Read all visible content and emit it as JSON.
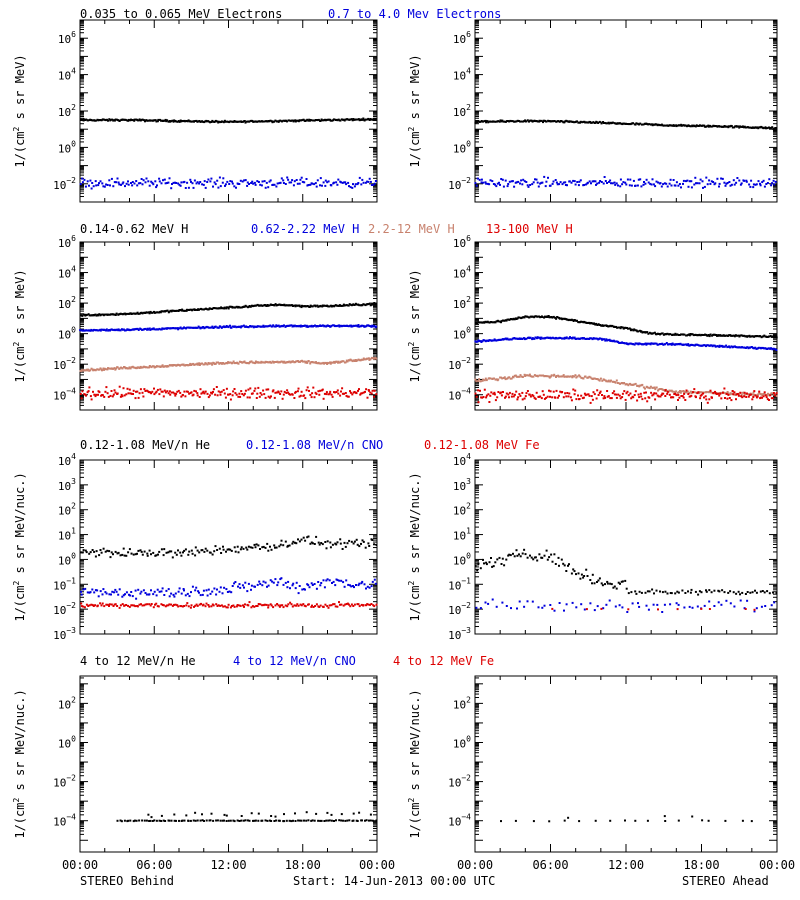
{
  "colors": {
    "black": "#000000",
    "blue": "#0000dd",
    "tan": "#c8826e",
    "red": "#dd0000"
  },
  "footer": {
    "left": "STEREO Behind",
    "center": "Start: 14-Jun-2013 00:00 UTC",
    "right": "STEREO Ahead"
  },
  "time_ticks": [
    "00:00",
    "06:00",
    "12:00",
    "18:00",
    "00:00"
  ],
  "chart_data": [
    {
      "type": "scatter",
      "row": 1,
      "ylabel": "1/(cm2 s sr MeV)",
      "ylim_exp": [
        -3,
        7
      ],
      "ytick_exps": [
        -2,
        0,
        2,
        4,
        6
      ],
      "legend": [
        {
          "name": "0.035 to 0.065 MeV Electrons",
          "color": "black"
        },
        {
          "name": "0.7 to 4.0 Mev Electrons",
          "color": "blue"
        }
      ],
      "panels": [
        {
          "side": "STEREO Behind",
          "series": [
            {
              "color": "black",
              "x": [
                0,
                4,
                8,
                12,
                16,
                20,
                24
              ],
              "y_exp": [
                1.5,
                1.5,
                1.45,
                1.4,
                1.45,
                1.5,
                1.55
              ],
              "noise": 0.04,
              "count": 300
            },
            {
              "color": "blue",
              "x": [
                0,
                24
              ],
              "y_exp": [
                -1.95,
                -1.95
              ],
              "noise": 0.22,
              "count": 220
            }
          ]
        },
        {
          "side": "STEREO Ahead",
          "series": [
            {
              "color": "black",
              "x": [
                0,
                4,
                8,
                12,
                16,
                20,
                24
              ],
              "y_exp": [
                1.4,
                1.45,
                1.4,
                1.3,
                1.2,
                1.15,
                1.05
              ],
              "noise": 0.04,
              "count": 300
            },
            {
              "color": "blue",
              "x": [
                0,
                24
              ],
              "y_exp": [
                -1.95,
                -1.95
              ],
              "noise": 0.22,
              "count": 220
            }
          ]
        }
      ]
    },
    {
      "type": "scatter",
      "row": 2,
      "ylabel": "1/(cm2 s sr MeV)",
      "ylim_exp": [
        -5,
        6
      ],
      "ytick_exps": [
        -4,
        -2,
        0,
        2,
        4,
        6
      ],
      "legend": [
        {
          "name": "0.14-0.62 MeV H",
          "color": "black"
        },
        {
          "name": "0.62-2.22 MeV H",
          "color": "blue"
        },
        {
          "name": "2.2-12 MeV H",
          "color": "tan"
        },
        {
          "name": "13-100 MeV H",
          "color": "red"
        }
      ],
      "panels": [
        {
          "side": "STEREO Behind",
          "series": [
            {
              "color": "black",
              "x": [
                0,
                4,
                8,
                12,
                16,
                18,
                20,
                24
              ],
              "y_exp": [
                1.2,
                1.3,
                1.5,
                1.7,
                1.9,
                1.8,
                1.8,
                1.95
              ],
              "noise": 0.05,
              "count": 300
            },
            {
              "color": "blue",
              "x": [
                0,
                6,
                12,
                18,
                24
              ],
              "y_exp": [
                0.2,
                0.3,
                0.45,
                0.5,
                0.5
              ],
              "noise": 0.05,
              "count": 300
            },
            {
              "color": "tan",
              "x": [
                0,
                6,
                12,
                18,
                20,
                24
              ],
              "y_exp": [
                -2.4,
                -2.15,
                -1.9,
                -1.85,
                -1.95,
                -1.6
              ],
              "noise": 0.06,
              "count": 300
            },
            {
              "color": "red",
              "x": [
                0,
                24
              ],
              "y_exp": [
                -3.9,
                -3.9
              ],
              "noise": 0.3,
              "count": 260
            }
          ]
        },
        {
          "side": "STEREO Ahead",
          "series": [
            {
              "color": "black",
              "x": [
                0,
                2,
                4,
                6,
                8,
                10,
                12,
                14,
                18,
                24
              ],
              "y_exp": [
                0.7,
                0.8,
                1.1,
                1.1,
                0.85,
                0.55,
                0.35,
                0.0,
                -0.1,
                -0.2
              ],
              "noise": 0.05,
              "count": 300
            },
            {
              "color": "blue",
              "x": [
                0,
                4,
                8,
                10,
                12,
                16,
                20,
                24
              ],
              "y_exp": [
                -0.5,
                -0.3,
                -0.3,
                -0.35,
                -0.65,
                -0.7,
                -0.85,
                -1.0
              ],
              "noise": 0.05,
              "count": 300
            },
            {
              "color": "tan",
              "x": [
                0,
                4,
                8,
                10,
                12,
                14,
                16,
                24
              ],
              "y_exp": [
                -3.1,
                -2.75,
                -2.8,
                -3.0,
                -3.3,
                -3.55,
                -3.8,
                -4.0
              ],
              "noise": 0.08,
              "count": 260
            },
            {
              "color": "red",
              "x": [
                0,
                24
              ],
              "y_exp": [
                -4.05,
                -4.05
              ],
              "noise": 0.3,
              "count": 260
            }
          ]
        }
      ]
    },
    {
      "type": "scatter",
      "row": 3,
      "ylabel": "1/(cm2 s sr MeV/nuc.)",
      "ylim_exp": [
        -3,
        4
      ],
      "ytick_exps": [
        -3,
        -2,
        -1,
        0,
        1,
        2,
        3,
        4
      ],
      "legend": [
        {
          "name": "0.12-1.08 MeV/n He",
          "color": "black"
        },
        {
          "name": "0.12-1.08 MeV/n CNO",
          "color": "blue"
        },
        {
          "name": "0.12-1.08 MeV Fe",
          "color": "red"
        }
      ],
      "panels": [
        {
          "side": "STEREO Behind",
          "series": [
            {
              "color": "black",
              "x": [
                0,
                4,
                8,
                12,
                16,
                18,
                20,
                24
              ],
              "y_exp": [
                0.3,
                0.25,
                0.25,
                0.4,
                0.55,
                0.8,
                0.6,
                0.6
              ],
              "noise": 0.15,
              "count": 180
            },
            {
              "color": "blue",
              "x": [
                0,
                6,
                12,
                16,
                18,
                20,
                24
              ],
              "y_exp": [
                -1.3,
                -1.35,
                -1.2,
                -0.9,
                -1.1,
                -0.9,
                -1.0
              ],
              "noise": 0.2,
              "count": 180
            },
            {
              "color": "red",
              "x": [
                0,
                24
              ],
              "y_exp": [
                -1.85,
                -1.85
              ],
              "noise": 0.08,
              "count": 200
            }
          ]
        },
        {
          "side": "STEREO Ahead",
          "series": [
            {
              "color": "black",
              "x": [
                0,
                2,
                4,
                6,
                8,
                10,
                12
              ],
              "y_exp": [
                -0.2,
                -0.1,
                0.3,
                0.1,
                -0.5,
                -0.9,
                -1.0
              ],
              "noise": 0.2,
              "count": 90
            },
            {
              "color": "black",
              "x": [
                12,
                24
              ],
              "y_exp": [
                -1.3,
                -1.3
              ],
              "noise": 0.1,
              "count": 60
            },
            {
              "color": "blue",
              "x": [
                0,
                24
              ],
              "y_exp": [
                -1.85,
                -1.85
              ],
              "noise": 0.2,
              "count": 70
            },
            {
              "color": "red",
              "x": [
                6,
                24
              ],
              "y_exp": [
                -2.0,
                -2.0
              ],
              "noise": 0.02,
              "count": 10
            }
          ]
        }
      ]
    },
    {
      "type": "scatter",
      "row": 4,
      "ylabel": "1/(cm2 s sr MeV/nuc.)",
      "ylim_exp": [
        -5.6,
        3.4
      ],
      "ytick_exps": [
        -4,
        -2,
        0,
        2
      ],
      "legend": [
        {
          "name": "4 to 12 MeV/n He",
          "color": "black"
        },
        {
          "name": "4 to 12 MeV/n CNO",
          "color": "blue"
        },
        {
          "name": "4 to 12 MeV Fe",
          "color": "red"
        }
      ],
      "panels": [
        {
          "side": "STEREO Behind",
          "series": [
            {
              "color": "black",
              "x": [
                3,
                24
              ],
              "y_exp": [
                -4.0,
                -4.0
              ],
              "noise": 0.02,
              "count": 120
            },
            {
              "color": "black",
              "x": [
                5,
                24
              ],
              "y_exp": [
                -3.7,
                -3.6
              ],
              "noise": 0.12,
              "count": 25
            }
          ]
        },
        {
          "side": "STEREO Ahead",
          "series": [
            {
              "color": "black",
              "x": [
                2,
                23
              ],
              "y_exp": [
                -4.0,
                -4.0
              ],
              "noise": 0.02,
              "count": 18
            },
            {
              "color": "black",
              "x": [
                5,
                23
              ],
              "y_exp": [
                -3.8,
                -3.8
              ],
              "noise": 0.05,
              "count": 3
            }
          ]
        }
      ]
    }
  ]
}
